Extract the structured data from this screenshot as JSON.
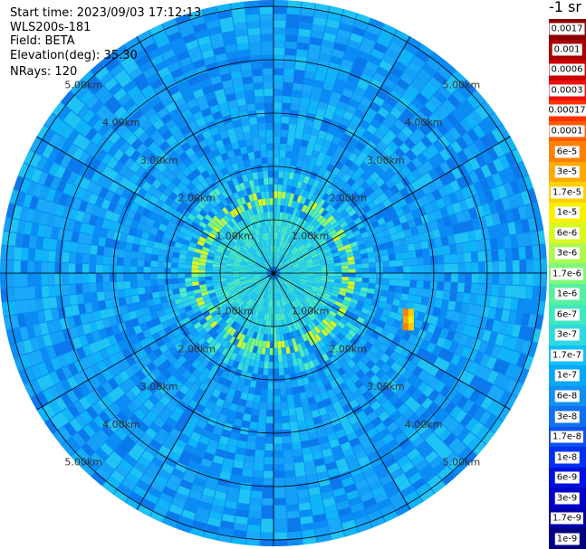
{
  "header": {
    "start_time": "Start time: 2023/09/03 17:12:13",
    "device": "WLS200s-181",
    "field": "Field: BETA",
    "elevation": "Elevation(deg): 35.30",
    "nrays": "NRays: 120"
  },
  "unit_label": "-1 sr",
  "chart_data": {
    "type": "heatmap",
    "projection": "polar-ppi",
    "field": "BETA",
    "elevation_deg": 35.3,
    "n_rays": 120,
    "range_ring_labels": [
      "1.00km",
      "2.00km",
      "3.00km",
      "4.00km",
      "5.00km"
    ],
    "max_range_km": 5.3,
    "colorscale": "log",
    "colorbar_labels": [
      "0.0017",
      "0.001",
      "0.0006",
      "0.0003",
      "0.00017",
      "0.0001",
      "6e-5",
      "3e-5",
      "1.7e-5",
      "1e-5",
      "6e-6",
      "3e-6",
      "1.7e-6",
      "1e-6",
      "6e-7",
      "3e-7",
      "1.7e-7",
      "1e-7",
      "6e-8",
      "3e-8",
      "1.7e-8",
      "1e-8",
      "6e-9",
      "3e-9",
      "1.7e-9",
      "1e-9"
    ],
    "colorbar_colors": [
      "#8b0000",
      "#a80000",
      "#cc0000",
      "#ee1010",
      "#ff3000",
      "#ff5a00",
      "#ff8000",
      "#ffa800",
      "#ffd000",
      "#f8f000",
      "#d8f820",
      "#b0f850",
      "#80f878",
      "#58f0a0",
      "#40e8c0",
      "#30d8e0",
      "#10c0f8",
      "#08a8f8",
      "#1090f0",
      "#1070f0",
      "#1050f0",
      "#0030f0",
      "#0010e0",
      "#0000c8",
      "#0000a8",
      "#000080"
    ],
    "background_level": "1e-8 to 1e-7",
    "near_field_level": "1.7e-7 to 6e-7",
    "ring_feature": {
      "range_km": 1.3,
      "level": "1.7e-6 to 6e-6"
    },
    "hotspot": {
      "azimuth_deg_approx": 108,
      "range_km_approx": 2.6,
      "level": "3e-5 to 1e-4"
    }
  }
}
